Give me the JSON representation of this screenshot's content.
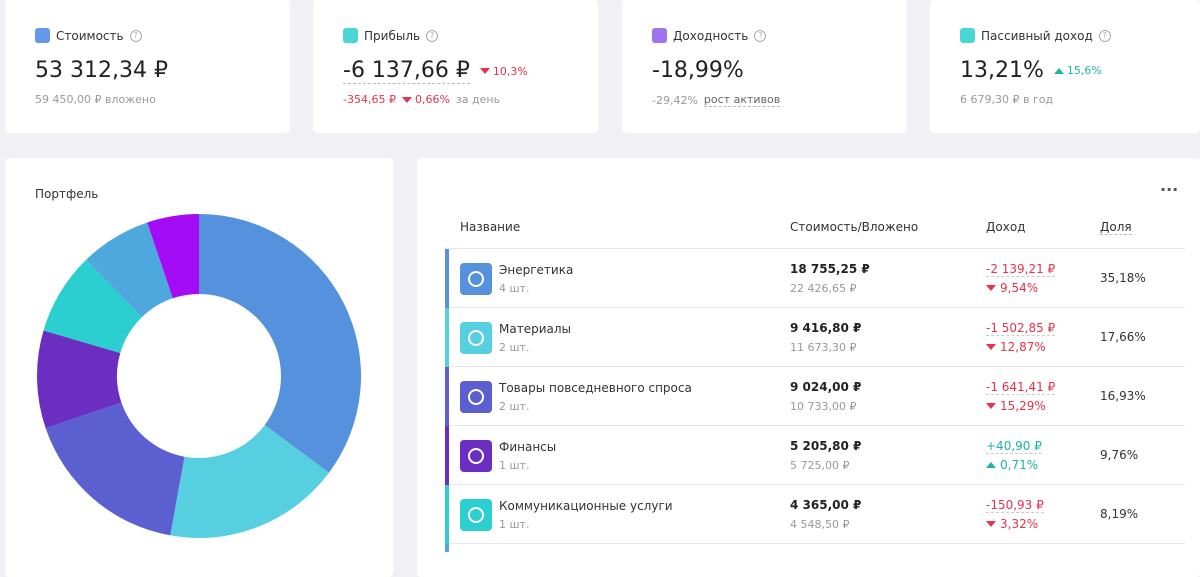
{
  "cards": [
    {
      "label": "Стоимость",
      "value": "53 312,34 ₽",
      "icon_color": "#4a86e8",
      "sub": [
        "59 450,00 ₽ вложено"
      ]
    },
    {
      "label": "Прибыль",
      "value": "-6 137,66 ₽",
      "icon_color": "#2ccfcf",
      "change": {
        "text": "10,3%",
        "trend": "down"
      },
      "sub_change": {
        "amount": "-354,65 ₽",
        "percent": "0,66%",
        "suffix": "за день",
        "trend": "down"
      }
    },
    {
      "label": "Доходность",
      "value": "-18,99%",
      "icon_color": "#8e5be8",
      "sub_pair": {
        "amount": "-29,42%",
        "link": "рост активов"
      }
    },
    {
      "label": "Пассивный доход",
      "value": "13,21%",
      "icon_color": "#2ccfcf",
      "change": {
        "text": "15,6%",
        "trend": "up"
      },
      "sub": [
        "6 679,30 ₽ в год"
      ]
    }
  ],
  "portfolio": {
    "title": "Портфель",
    "slices": [
      {
        "value": 35.18,
        "color": "#5591dc"
      },
      {
        "value": 17.66,
        "color": "#56d0e0"
      },
      {
        "value": 16.93,
        "color": "#5b5fd0"
      },
      {
        "value": 9.76,
        "color": "#6a2fc0"
      },
      {
        "value": 8.19,
        "color": "#2ccfcf"
      },
      {
        "value": 7.1,
        "color": "#4ea8de"
      },
      {
        "value": 5.18,
        "color": "#a30cf5"
      }
    ]
  },
  "table": {
    "menu": "···",
    "headers": [
      "Название",
      "Стоимость/Вложено",
      "Доход",
      "Доля"
    ],
    "rows": [
      {
        "name": "Энергетика",
        "qty": "4 шт.",
        "value": "18 755,25 ₽",
        "invested": "22 426,65 ₽",
        "income": "-2 139,21 ₽",
        "income_pct": "9,54%",
        "trend": "down",
        "share": "35,18%",
        "color": "#5591dc"
      },
      {
        "name": "Материалы",
        "qty": "2 шт.",
        "value": "9 416,80 ₽",
        "invested": "11 673,30 ₽",
        "income": "-1 502,85 ₽",
        "income_pct": "12,87%",
        "trend": "down",
        "share": "17,66%",
        "color": "#56d0e0"
      },
      {
        "name": "Товары повседневного спроса",
        "qty": "2 шт.",
        "value": "9 024,00 ₽",
        "invested": "10 733,00 ₽",
        "income": "-1 641,41 ₽",
        "income_pct": "15,29%",
        "trend": "down",
        "share": "16,93%",
        "color": "#5b5fd0"
      },
      {
        "name": "Финансы",
        "qty": "1 шт.",
        "value": "5 205,80 ₽",
        "invested": "5 725,00 ₽",
        "income": "+40,90 ₽",
        "income_pct": "0,71%",
        "trend": "up",
        "share": "9,76%",
        "color": "#6a2fc0"
      },
      {
        "name": "Коммуникационные услуги",
        "qty": "1 шт.",
        "value": "4 365,00 ₽",
        "invested": "4 548,50 ₽",
        "income": "-150,93 ₽",
        "income_pct": "3,32%",
        "trend": "down",
        "share": "8,19%",
        "color": "#2ccfcf"
      }
    ]
  }
}
